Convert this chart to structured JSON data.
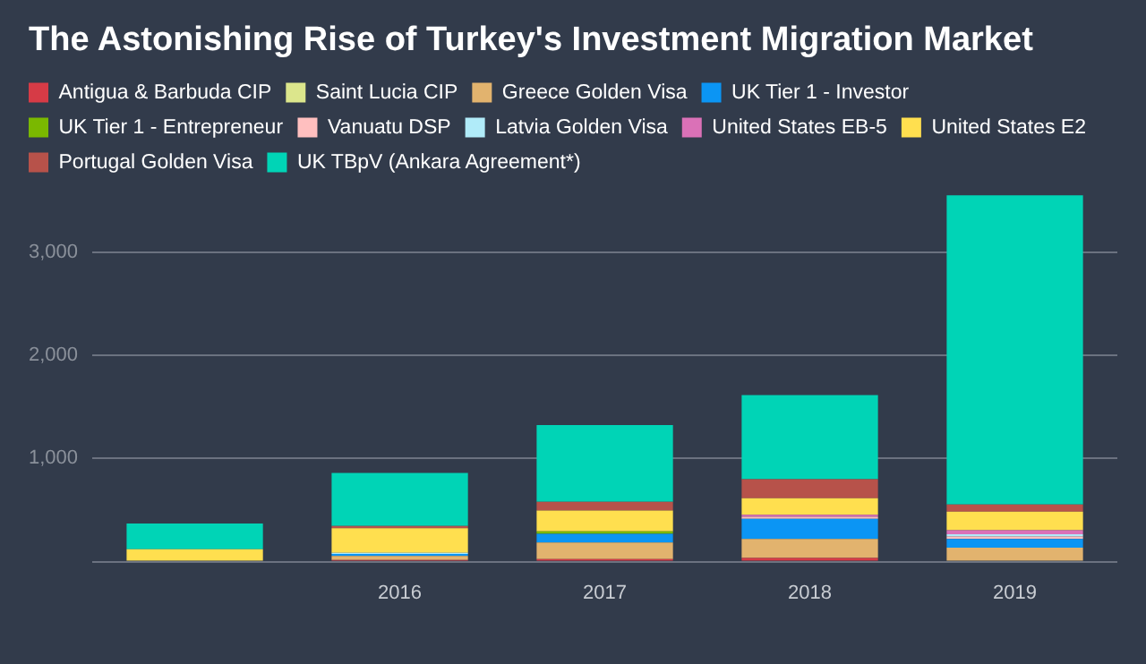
{
  "chart_data": {
    "type": "bar",
    "title": "The Astonishing Rise of Turkey's Investment Migration Market",
    "stacked": true,
    "legend": "top",
    "grid": "y",
    "categories": [
      null,
      "2016",
      "2017",
      "2018",
      "2019"
    ],
    "ylim": [
      0,
      3600
    ],
    "yticks": [
      {
        "value": 0,
        "label": null
      },
      {
        "value": 1000,
        "label": "1,000"
      },
      {
        "value": 2000,
        "label": "2,000"
      },
      {
        "value": 3000,
        "label": "3,000"
      }
    ],
    "series": [
      {
        "name": "Antigua & Barbuda CIP",
        "color": "#d63b46",
        "values": [
          null,
          15,
          25,
          35,
          null
        ]
      },
      {
        "name": "Saint Lucia CIP",
        "color": "#dce68c",
        "values": [
          null,
          null,
          null,
          null,
          10
        ]
      },
      {
        "name": "Greece Golden Visa",
        "color": "#e2b36e",
        "values": [
          null,
          40,
          160,
          185,
          125
        ]
      },
      {
        "name": "UK Tier 1 - Investor",
        "color": "#0b95f4",
        "values": [
          null,
          20,
          85,
          195,
          85
        ]
      },
      {
        "name": "UK Tier 1 - Entrepreneur",
        "color": "#7ab800",
        "values": [
          null,
          null,
          25,
          null,
          null
        ]
      },
      {
        "name": "Vanuatu DSP",
        "color": "#ffbfbf",
        "values": [
          null,
          null,
          null,
          20,
          25
        ]
      },
      {
        "name": "Latvia Golden Visa",
        "color": "#b0ebf9",
        "values": [
          null,
          10,
          null,
          null,
          20
        ]
      },
      {
        "name": "United States EB-5",
        "color": "#da71b7",
        "values": [
          null,
          null,
          null,
          20,
          40
        ]
      },
      {
        "name": "United States E2",
        "color": "#ffdf4f",
        "values": [
          120,
          240,
          200,
          160,
          180
        ]
      },
      {
        "name": "Portugal Golden Visa",
        "color": "#b7524a",
        "values": [
          null,
          20,
          85,
          185,
          70
        ]
      },
      {
        "name": "UK TBpV (Ankara Agreement*)",
        "color": "#00d4b6",
        "values": [
          250,
          515,
          745,
          815,
          3000
        ]
      }
    ]
  }
}
